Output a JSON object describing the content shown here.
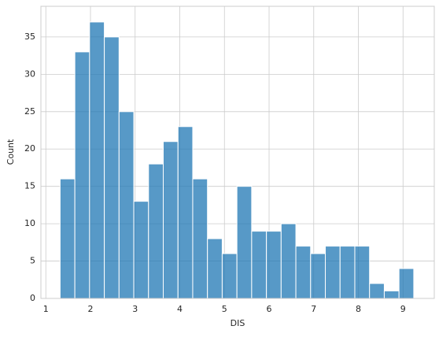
{
  "chart_data": {
    "type": "histogram",
    "x_label": "DIS",
    "y_label": "Count",
    "bins": [
      1.32,
      1.65,
      1.98,
      2.31,
      2.64,
      2.97,
      3.3,
      3.63,
      3.96,
      4.29,
      4.62,
      4.95,
      5.28,
      5.61,
      5.94,
      6.27,
      6.6,
      6.93,
      7.26,
      7.59,
      7.92,
      8.25,
      8.58,
      8.91,
      9.24
    ],
    "values": [
      16,
      33,
      37,
      35,
      25,
      13,
      18,
      21,
      23,
      16,
      8,
      6,
      15,
      9,
      9,
      10,
      7,
      6,
      7,
      7,
      7,
      2,
      1,
      4
    ],
    "color": "#1f77b4",
    "xlim": [
      0.89,
      9.7
    ],
    "xticks": [
      1,
      2,
      3,
      4,
      5,
      6,
      7,
      8,
      9
    ],
    "ylim": [
      0,
      39.1
    ],
    "yticks": [
      0,
      5,
      10,
      15,
      20,
      25,
      30,
      35
    ],
    "grid": true
  }
}
